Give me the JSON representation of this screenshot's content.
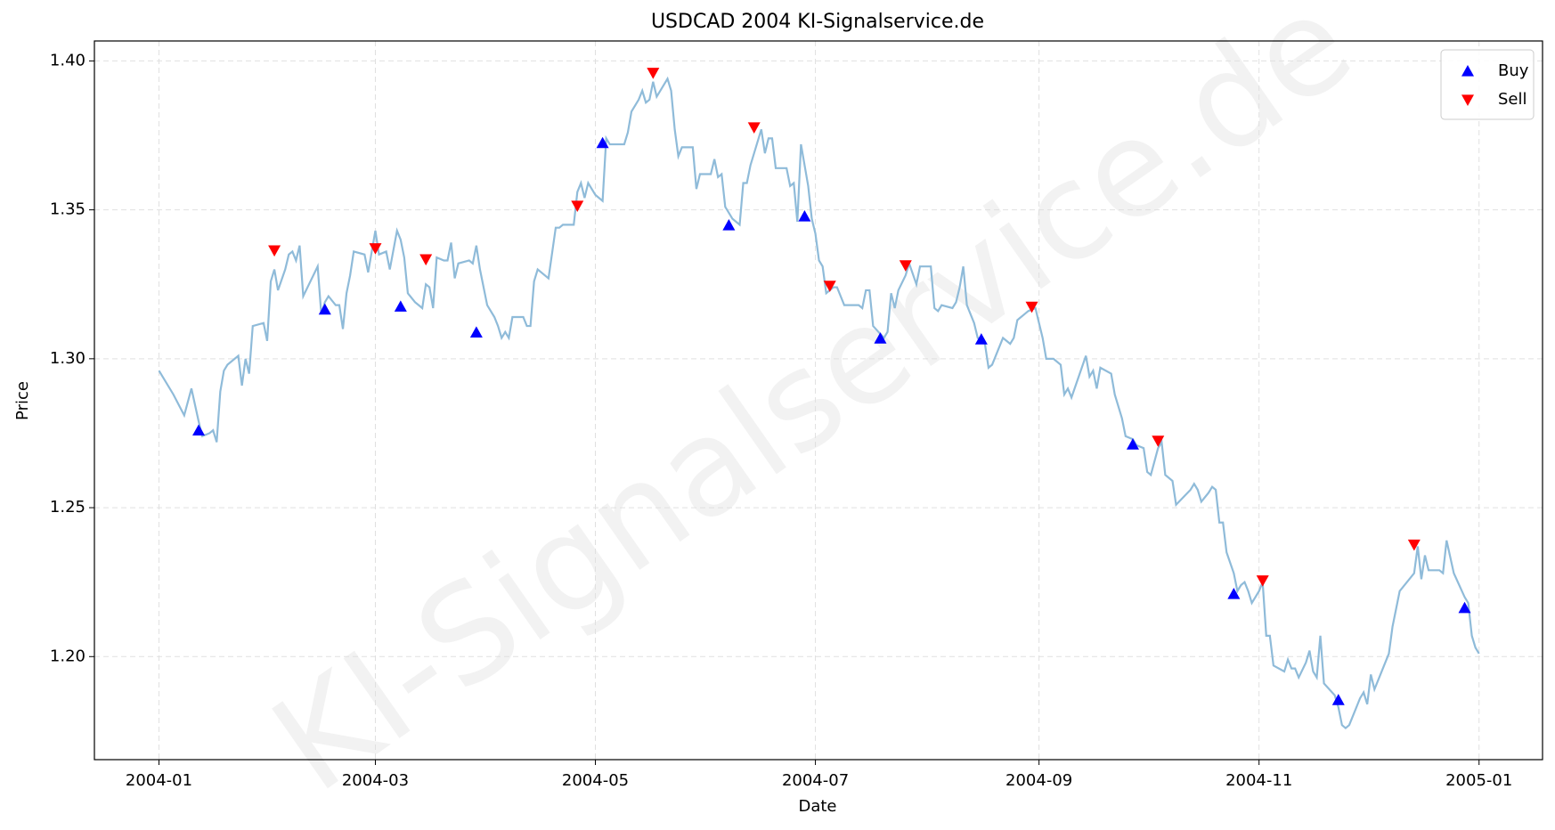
{
  "chart_data": {
    "type": "line",
    "title": "USDCAD 2004 KI-Signalservice.de",
    "watermark": "KI-Signalservice.de",
    "x_label": "Date",
    "y_label": "Price",
    "xlim": [
      -17.9,
      383.6
    ],
    "xticks": [
      {
        "value": 0,
        "label": "2004-01"
      },
      {
        "value": 60,
        "label": "2004-03"
      },
      {
        "value": 121,
        "label": "2004-05"
      },
      {
        "value": 182,
        "label": "2004-07"
      },
      {
        "value": 244,
        "label": "2004-09"
      },
      {
        "value": 305,
        "label": "2004-11"
      },
      {
        "value": 366,
        "label": "2005-01"
      }
    ],
    "ylim": [
      1.1654,
      1.4067
    ],
    "yticks": [
      {
        "value": 1.2,
        "label": "1.20"
      },
      {
        "value": 1.25,
        "label": "1.25"
      },
      {
        "value": 1.3,
        "label": "1.30"
      },
      {
        "value": 1.35,
        "label": "1.35"
      },
      {
        "value": 1.4,
        "label": "1.40"
      }
    ],
    "grid": true,
    "legend": "upper right",
    "series": [
      {
        "type": "line",
        "color": "#8fbbd9",
        "x": [
          0,
          4,
          7,
          9,
          11,
          12,
          14,
          15,
          16,
          17,
          18,
          19,
          22,
          23,
          24,
          25,
          26,
          29,
          30,
          31,
          32,
          33,
          35,
          36,
          37,
          38,
          39,
          40,
          44,
          45,
          46,
          47,
          49,
          50,
          51,
          52,
          53,
          54,
          57,
          58,
          60,
          61,
          63,
          64,
          66,
          67,
          68,
          69,
          71,
          72,
          73,
          74,
          75,
          76,
          77,
          79,
          80,
          81,
          82,
          83,
          86,
          87,
          88,
          89,
          91,
          93,
          94,
          95,
          96,
          97,
          98,
          101,
          102,
          103,
          104,
          105,
          108,
          110,
          111,
          112,
          115,
          116,
          117,
          118,
          119,
          121,
          123,
          124,
          125,
          128,
          129,
          130,
          131,
          133,
          134,
          135,
          136,
          137,
          138,
          141,
          142,
          143,
          144,
          145,
          148,
          149,
          150,
          153,
          154,
          155,
          156,
          157,
          158,
          159,
          161,
          162,
          163,
          164,
          167,
          168,
          169,
          170,
          171,
          174,
          175,
          176,
          177,
          178,
          179,
          180,
          181,
          182,
          183,
          184,
          185,
          187,
          188,
          189,
          190,
          191,
          193,
          194,
          195,
          196,
          197,
          198,
          201,
          202,
          203,
          204,
          205,
          207,
          208,
          210,
          211,
          214,
          215,
          216,
          217,
          220,
          221,
          222,
          223,
          224,
          226,
          227,
          229,
          230,
          231,
          234,
          235,
          236,
          237,
          238,
          240,
          241,
          243,
          244,
          245,
          246,
          248,
          250,
          251,
          252,
          253,
          257,
          258,
          259,
          260,
          261,
          264,
          265,
          267,
          268,
          270,
          271,
          273,
          274,
          275,
          277,
          278,
          279,
          280,
          281,
          282,
          286,
          287,
          288,
          289,
          291,
          292,
          293,
          294,
          295,
          296,
          298,
          299,
          300,
          301,
          302,
          303,
          304,
          305,
          306,
          307,
          308,
          309,
          312,
          313,
          314,
          315,
          316,
          318,
          319,
          320,
          321,
          322,
          323,
          326,
          327,
          328,
          329,
          330,
          333,
          334,
          335,
          336,
          337,
          340,
          341,
          342,
          343,
          344,
          348,
          349,
          350,
          351,
          352,
          355,
          356,
          357,
          359,
          362,
          363,
          364,
          365,
          366
        ],
        "values": [
          1.296,
          1.288,
          1.281,
          1.29,
          1.279,
          1.274,
          1.275,
          1.276,
          1.272,
          1.289,
          1.296,
          1.298,
          1.301,
          1.291,
          1.3,
          1.295,
          1.311,
          1.312,
          1.306,
          1.326,
          1.33,
          1.323,
          1.33,
          1.335,
          1.336,
          1.333,
          1.338,
          1.321,
          1.331,
          1.315,
          1.319,
          1.321,
          1.318,
          1.318,
          1.31,
          1.322,
          1.328,
          1.336,
          1.335,
          1.329,
          1.343,
          1.335,
          1.336,
          1.33,
          1.343,
          1.34,
          1.334,
          1.322,
          1.319,
          1.318,
          1.317,
          1.325,
          1.324,
          1.317,
          1.334,
          1.333,
          1.333,
          1.339,
          1.327,
          1.332,
          1.333,
          1.332,
          1.338,
          1.33,
          1.318,
          1.314,
          1.311,
          1.307,
          1.309,
          1.307,
          1.314,
          1.314,
          1.311,
          1.311,
          1.326,
          1.33,
          1.327,
          1.344,
          1.344,
          1.345,
          1.345,
          1.356,
          1.359,
          1.354,
          1.359,
          1.355,
          1.353,
          1.374,
          1.372,
          1.372,
          1.372,
          1.376,
          1.383,
          1.387,
          1.39,
          1.386,
          1.387,
          1.393,
          1.388,
          1.394,
          1.39,
          1.377,
          1.368,
          1.371,
          1.371,
          1.357,
          1.362,
          1.362,
          1.367,
          1.361,
          1.362,
          1.351,
          1.349,
          1.347,
          1.345,
          1.359,
          1.359,
          1.365,
          1.377,
          1.369,
          1.374,
          1.374,
          1.364,
          1.364,
          1.358,
          1.359,
          1.346,
          1.372,
          1.365,
          1.358,
          1.347,
          1.342,
          1.333,
          1.331,
          1.322,
          1.324,
          1.324,
          1.321,
          1.318,
          1.318,
          1.318,
          1.318,
          1.317,
          1.323,
          1.323,
          1.311,
          1.307,
          1.309,
          1.322,
          1.317,
          1.323,
          1.328,
          1.332,
          1.325,
          1.331,
          1.331,
          1.317,
          1.316,
          1.318,
          1.317,
          1.319,
          1.324,
          1.331,
          1.318,
          1.312,
          1.307,
          1.305,
          1.297,
          1.298,
          1.307,
          1.306,
          1.305,
          1.307,
          1.313,
          1.315,
          1.316,
          1.317,
          1.312,
          1.307,
          1.3,
          1.3,
          1.298,
          1.288,
          1.29,
          1.287,
          1.301,
          1.294,
          1.296,
          1.29,
          1.297,
          1.295,
          1.288,
          1.28,
          1.274,
          1.273,
          1.271,
          1.27,
          1.262,
          1.261,
          1.27,
          1.272,
          1.261,
          1.26,
          1.259,
          1.251,
          1.256,
          1.258,
          1.256,
          1.252,
          1.255,
          1.257,
          1.256,
          1.245,
          1.245,
          1.235,
          1.228,
          1.222,
          1.224,
          1.225,
          1.222,
          1.218,
          1.22,
          1.222,
          1.225,
          1.207,
          1.207,
          1.197,
          1.195,
          1.199,
          1.196,
          1.196,
          1.193,
          1.198,
          1.202,
          1.195,
          1.193,
          1.207,
          1.191,
          1.187,
          1.183,
          1.177,
          1.176,
          1.177,
          1.186,
          1.188,
          1.184,
          1.194,
          1.189,
          1.198,
          1.201,
          1.21,
          1.216,
          1.222,
          1.228,
          1.237,
          1.226,
          1.234,
          1.229,
          1.229,
          1.228,
          1.239,
          1.228,
          1.22,
          1.218,
          1.207,
          1.203,
          1.201
        ]
      },
      {
        "type": "scatter",
        "name": "Buy",
        "color": "#0000ff",
        "marker": "up",
        "x": [
          11,
          46,
          67,
          88,
          123,
          158,
          179,
          200,
          228,
          270,
          298,
          327,
          362
        ],
        "values": [
          1.2759,
          1.3165,
          1.3175,
          1.3088,
          1.3724,
          1.3448,
          1.3478,
          1.3068,
          1.3065,
          1.2712,
          1.221,
          1.1854,
          1.2163
        ]
      },
      {
        "type": "scatter",
        "name": "Sell",
        "color": "#ff0000",
        "marker": "down",
        "x": [
          32,
          60,
          74,
          116,
          137,
          165,
          186,
          207,
          242,
          277,
          306,
          348
        ],
        "values": [
          1.3364,
          1.3371,
          1.3334,
          1.3514,
          1.396,
          1.3777,
          1.3245,
          1.3314,
          1.3175,
          1.2725,
          1.2256,
          1.2376
        ]
      }
    ]
  }
}
